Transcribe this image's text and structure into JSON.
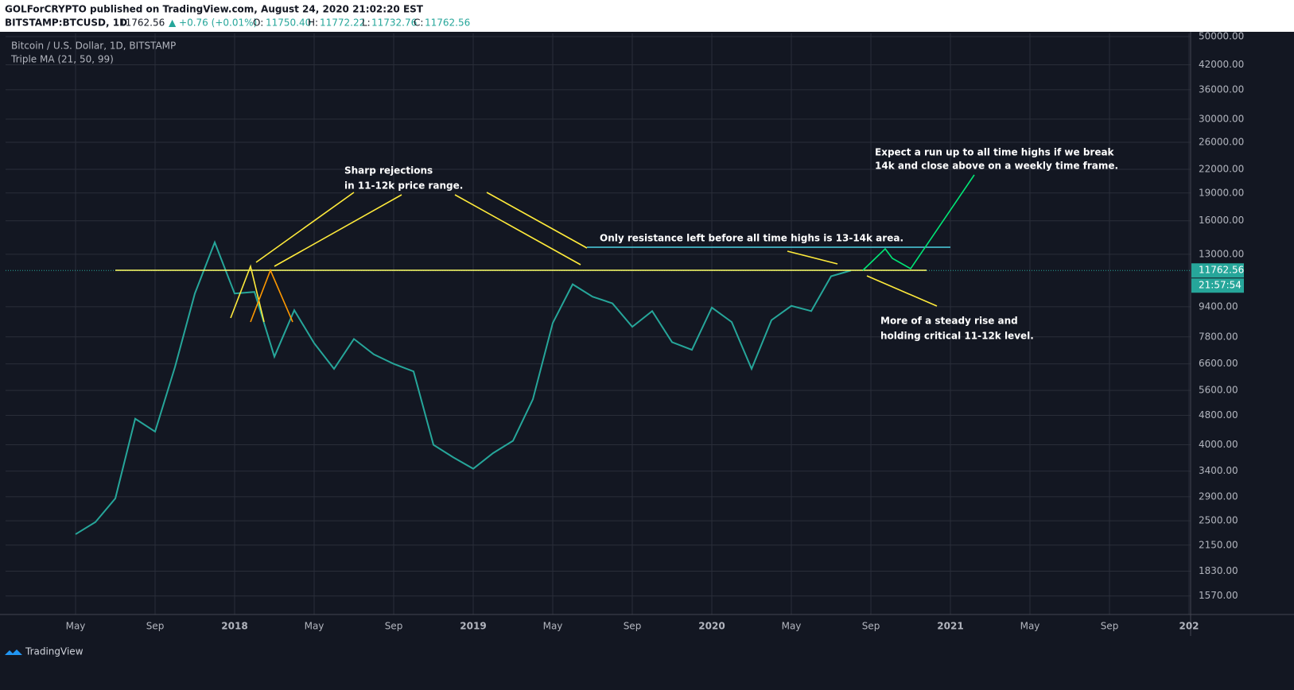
{
  "header": {
    "publisher": "GOLForCRYPTO published on TradingView.com, August 24, 2020 21:02:20 EST",
    "symbol": "BITSTAMP:BTCUSD, 1D",
    "last": "11762.56",
    "change": "▲ +0.76 (+0.01%)",
    "o_label": "O:",
    "o": "11750.40",
    "h_label": "H:",
    "h": "11772.22",
    "l_label": "L:",
    "l": "11732.76",
    "c_label": "C:",
    "c": "11762.56"
  },
  "chart_data": {
    "type": "line",
    "title": "Bitcoin / U.S. Dollar, 1D, BITSTAMP",
    "indicator": "Triple MA (21, 50, 99)",
    "log_scale": true,
    "grid": true,
    "categories": [
      "May",
      null,
      null,
      null,
      "Sep",
      null,
      null,
      null,
      "2018",
      null,
      null,
      null,
      "May",
      null,
      null,
      null,
      "Sep",
      null,
      null,
      null,
      "2019",
      null,
      null,
      null,
      "May",
      null,
      null,
      null,
      "Sep",
      null,
      null,
      null,
      "2020",
      null,
      null,
      null,
      "May",
      null,
      null,
      null,
      "Sep",
      null,
      null,
      null,
      "2021",
      null,
      null,
      null,
      "May",
      null,
      null,
      null,
      "Sep",
      null,
      null,
      null,
      "202"
    ],
    "series": [
      {
        "name": "BTCUSD",
        "color": "#26a69a",
        "values": [
          2300,
          2480,
          2870,
          4700,
          4340,
          6470,
          10200,
          14000,
          10200,
          10300,
          6900,
          9200,
          7500,
          6400,
          7700,
          7000,
          6600,
          6300,
          4000,
          3700,
          3450,
          3800,
          4100,
          5300,
          8500,
          10800,
          10000,
          9600,
          8300,
          9150,
          7550,
          7200,
          9350,
          8550,
          6400,
          8650,
          9450,
          9150,
          11350,
          11762.56,
          null,
          null,
          null,
          null,
          null,
          null,
          null,
          null,
          null,
          null,
          null,
          null,
          null,
          null,
          null,
          null,
          null
        ]
      }
    ],
    "ylim": [
      1400,
      51000
    ],
    "yticks": [
      {
        "value": 50000,
        "label": "50000.00"
      },
      {
        "value": 42000,
        "label": "42000.00"
      },
      {
        "value": 36000,
        "label": "36000.00"
      },
      {
        "value": 30000,
        "label": "30000.00"
      },
      {
        "value": 26000,
        "label": "26000.00"
      },
      {
        "value": 22000,
        "label": "22000.00"
      },
      {
        "value": 19000,
        "label": "19000.00"
      },
      {
        "value": 16000,
        "label": "16000.00"
      },
      {
        "value": 13000,
        "label": "13000.00"
      },
      {
        "value": 9400,
        "label": "9400.00"
      },
      {
        "value": 7800,
        "label": "7800.00"
      },
      {
        "value": 6600,
        "label": "6600.00"
      },
      {
        "value": 5600,
        "label": "5600.00"
      },
      {
        "value": 4800,
        "label": "4800.00"
      },
      {
        "value": 4000,
        "label": "4000.00"
      },
      {
        "value": 3400,
        "label": "3400.00"
      },
      {
        "value": 2900,
        "label": "2900.00"
      },
      {
        "value": 2500,
        "label": "2500.00"
      },
      {
        "value": 2150,
        "label": "2150.00"
      },
      {
        "value": 1830,
        "label": "1830.00"
      },
      {
        "value": 1570,
        "label": "1570.00"
      }
    ],
    "price_marker": {
      "value": 11762.56,
      "label": "11762.56"
    },
    "countdown": "21:57:54",
    "annotations": [
      "Sharp rejections",
      "in 11-12k price range.",
      "Only resistance left before all time highs is 13-14k area.",
      "Expect a run up to all time highs if we break",
      "14k and close above on a weekly time frame.",
      "More of a steady rise and",
      "holding critical 11-12k level."
    ]
  },
  "footer": {
    "brand": "TradingView"
  }
}
